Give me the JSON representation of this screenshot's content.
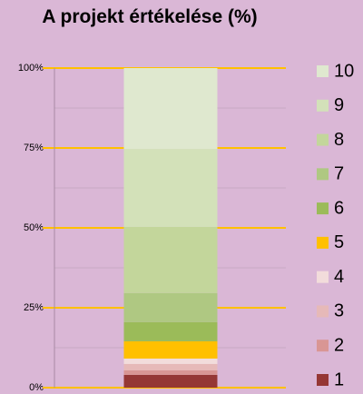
{
  "chart_data": {
    "type": "stacked_bar",
    "title": "A projekt értékelése (%)",
    "categories": [
      null
    ],
    "series": [
      {
        "name": "1",
        "color": "#953735",
        "values": [
          4.0
        ]
      },
      {
        "name": "2",
        "color": "#d99694",
        "values": [
          1.4
        ]
      },
      {
        "name": "3",
        "color": "#e6b9b8",
        "values": [
          2.0
        ]
      },
      {
        "name": "4",
        "color": "#f2dcdb",
        "values": [
          1.7
        ]
      },
      {
        "name": "5",
        "color": "#ffc000",
        "values": [
          5.4
        ]
      },
      {
        "name": "6",
        "color": "#9bbb59",
        "values": [
          6.0
        ]
      },
      {
        "name": "7",
        "color": "#afc882",
        "values": [
          9.1
        ]
      },
      {
        "name": "8",
        "color": "#c3d69b",
        "values": [
          20.7
        ]
      },
      {
        "name": "9",
        "color": "#d3e1b9",
        "values": [
          24.4
        ]
      },
      {
        "name": "10",
        "color": "#dfe8cf",
        "values": [
          25.3
        ]
      }
    ],
    "ylim": [
      0,
      100
    ],
    "yticks": [
      {
        "value": 0,
        "label": "0%"
      },
      {
        "value": 25,
        "label": "25%"
      },
      {
        "value": 50,
        "label": "50%"
      },
      {
        "value": 75,
        "label": "75%"
      },
      {
        "value": 100,
        "label": "100%"
      }
    ],
    "minor_yticks": [
      12.5,
      37.5,
      62.5,
      87.5
    ],
    "grid": true,
    "grid_color": "#ffc000",
    "minor_grid_color": "#c8a8c4",
    "legend": "right"
  }
}
